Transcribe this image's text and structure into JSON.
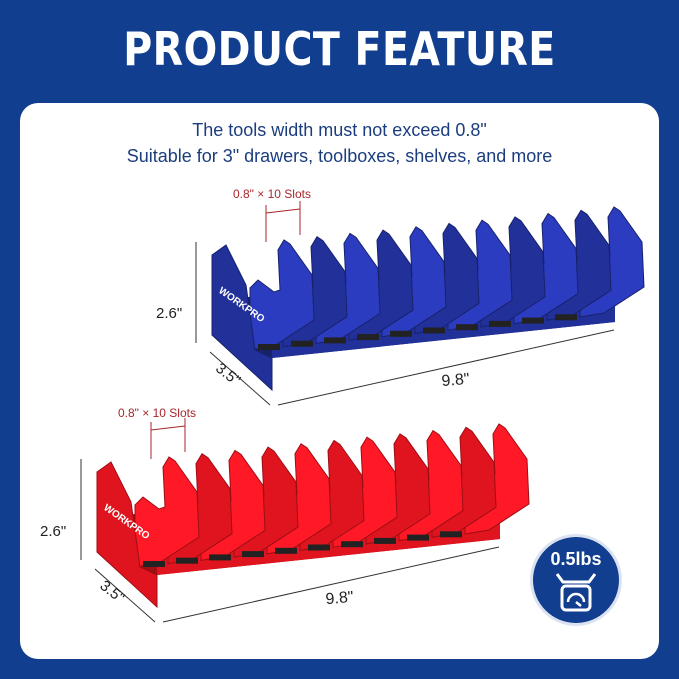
{
  "title": "PRODUCT FEATURE",
  "subtitle_lines": [
    "The tools width must not exceed 0.8\"",
    "Suitable for 3\" drawers, toolboxes, shelves, and more"
  ],
  "colors": {
    "background": "#123e8f",
    "blue_rack": "#22309a",
    "red_rack": "#e0141e",
    "dimension_red": "#a8262b"
  },
  "racks": [
    {
      "color": "blue",
      "brand": "WORKPRO",
      "slot_label": "0.8\" × 10 Slots",
      "height": "2.6\"",
      "depth": "3.5\"",
      "length": "9.8\""
    },
    {
      "color": "red",
      "brand": "WORKPRO",
      "slot_label": "0.8\" × 10 Slots",
      "height": "2.6\"",
      "depth": "3.5\"",
      "length": "9.8\""
    }
  ],
  "badge": {
    "weight": "0.5lbs",
    "icon": "scale-icon"
  }
}
